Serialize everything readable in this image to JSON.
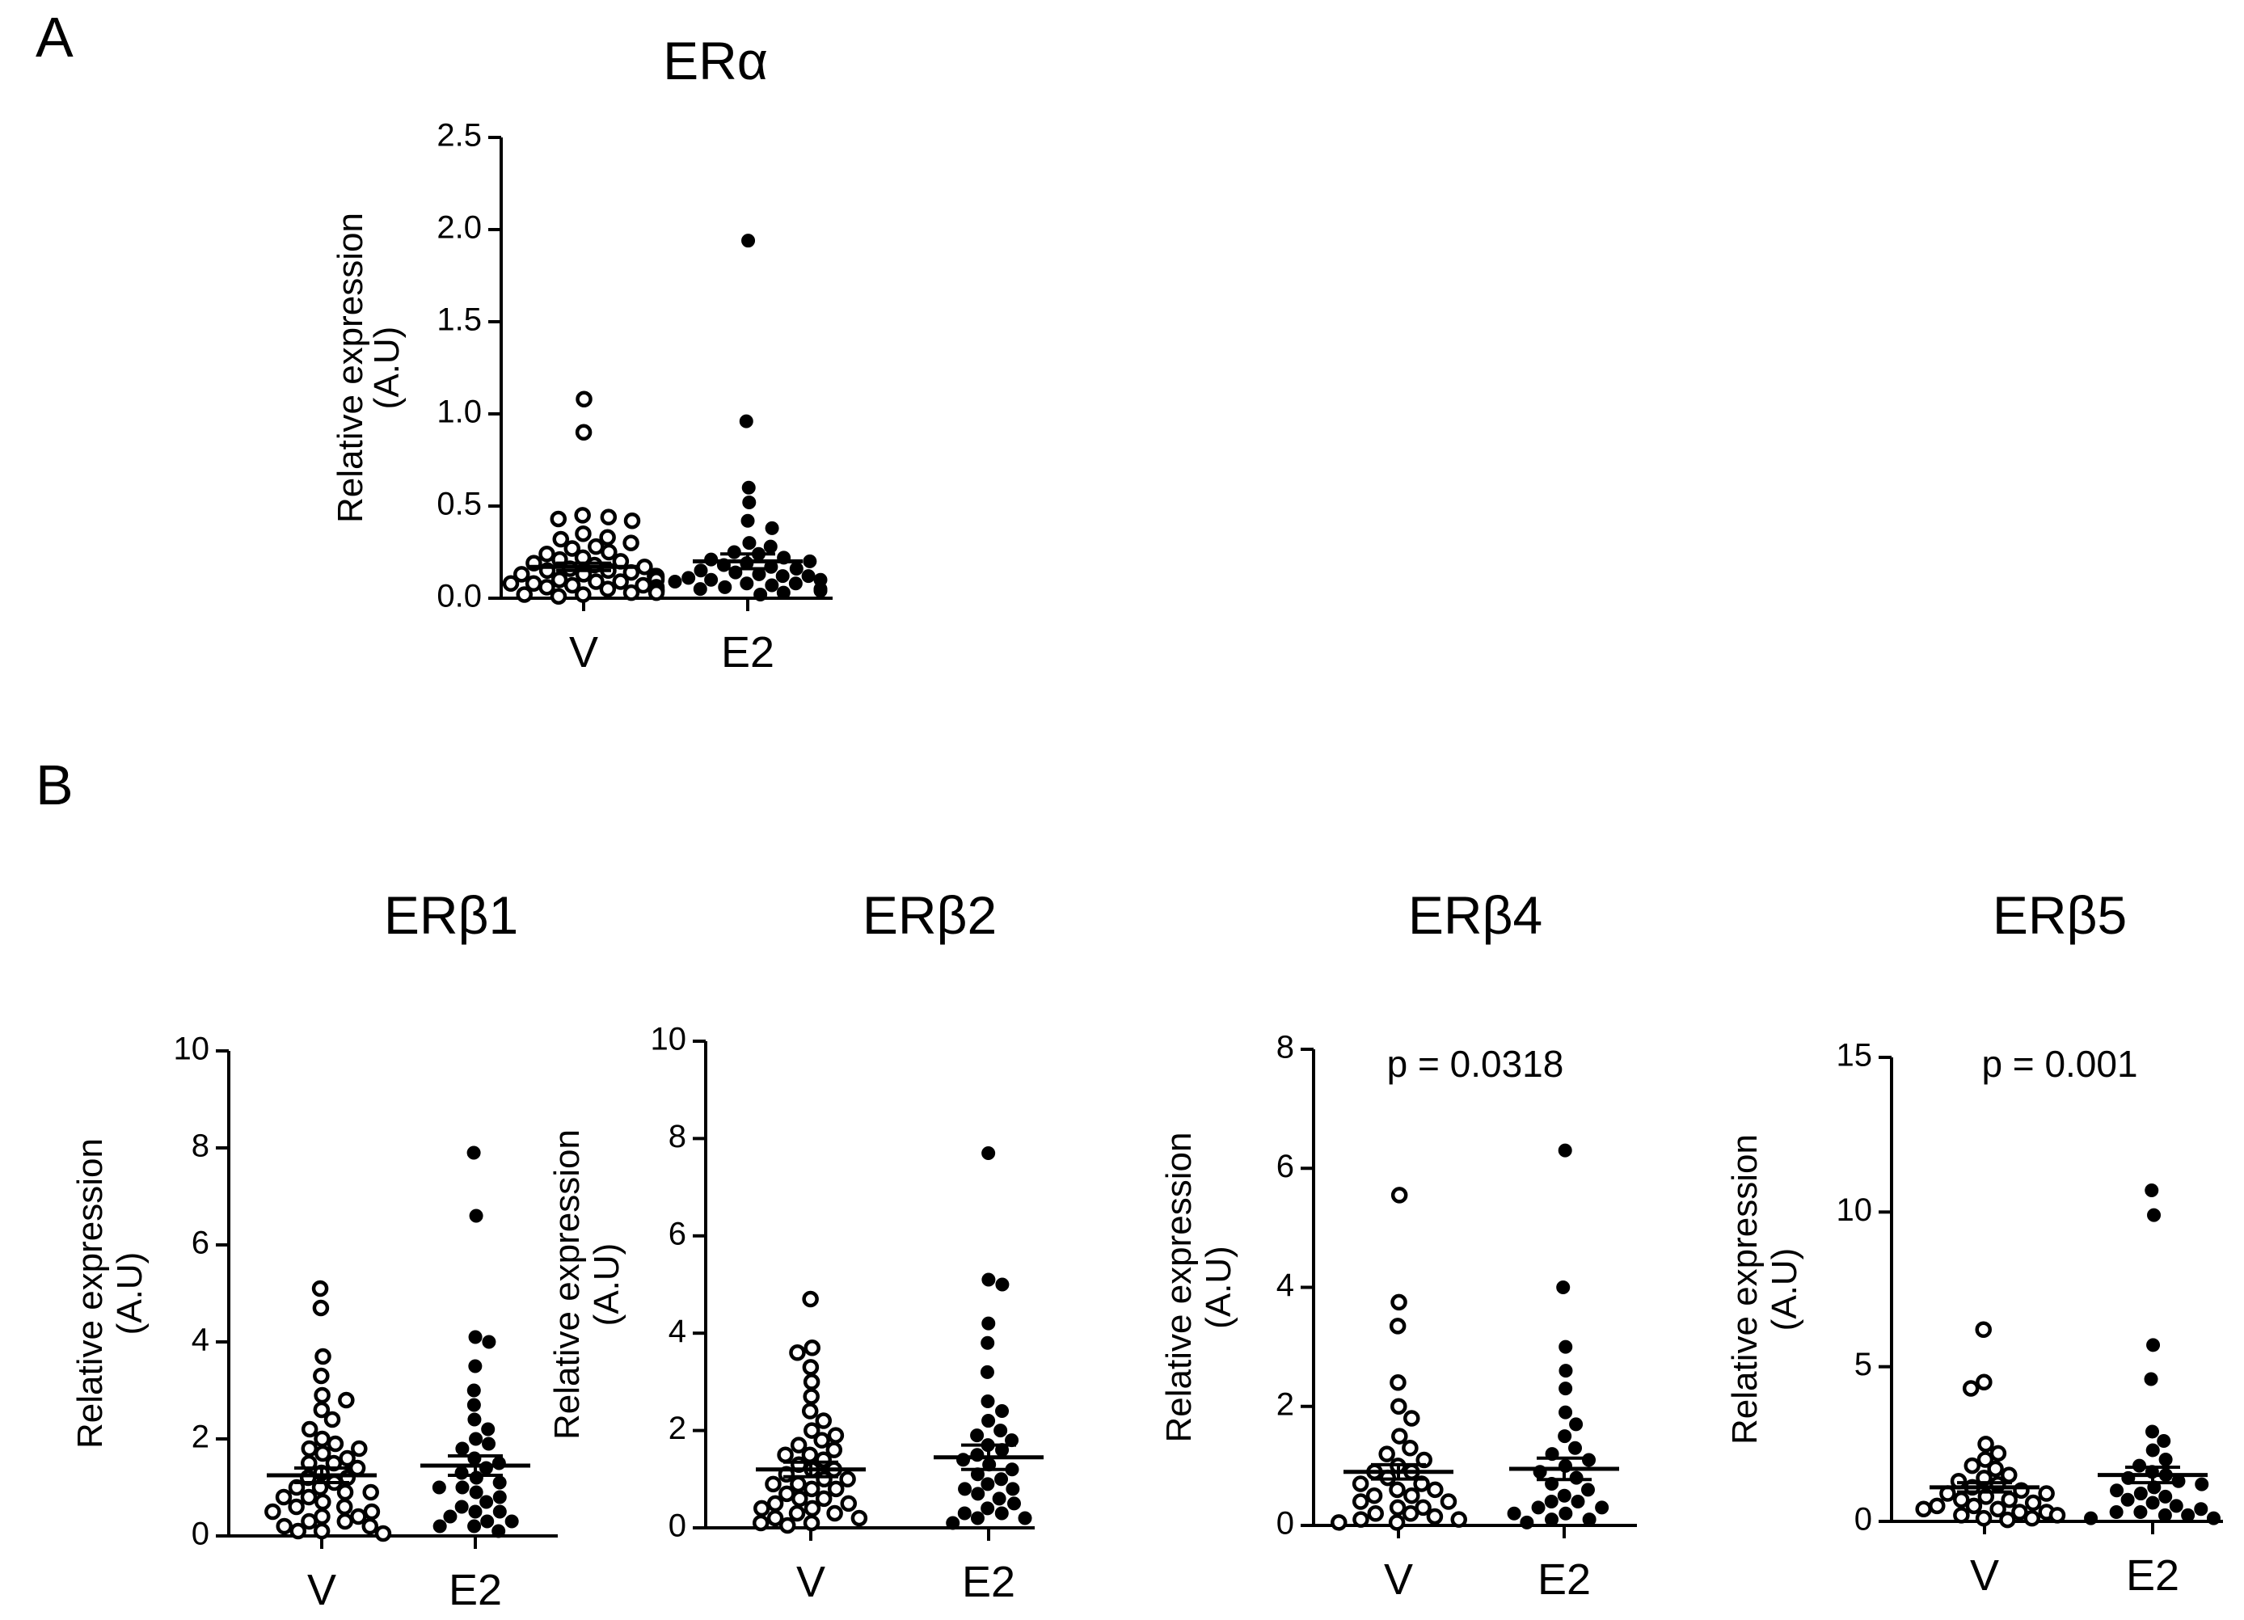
{
  "panel_labels": [
    "A",
    "B"
  ],
  "chart_data": [
    {
      "type": "scatter",
      "panel": "A",
      "title": "ERα",
      "ylabel": "Relative expression",
      "ylabel_unit": "(A.U)",
      "categories": [
        "V",
        "E2"
      ],
      "ylim": [
        0,
        2.5
      ],
      "yticks": [
        "0.0",
        "0.5",
        "1.0",
        "1.5",
        "2.0",
        "2.5"
      ],
      "ytick_values": [
        0,
        0.5,
        1.0,
        1.5,
        2.0,
        2.5
      ],
      "annotation": "",
      "series": [
        {
          "name": "V",
          "marker": "open",
          "mean": 0.17,
          "sem": 0.02,
          "values": [
            1.08,
            0.9,
            0.45,
            0.44,
            0.43,
            0.42,
            0.35,
            0.33,
            0.32,
            0.3,
            0.28,
            0.27,
            0.25,
            0.24,
            0.22,
            0.21,
            0.2,
            0.19,
            0.18,
            0.17,
            0.16,
            0.15,
            0.15,
            0.14,
            0.13,
            0.13,
            0.12,
            0.12,
            0.11,
            0.1,
            0.1,
            0.09,
            0.09,
            0.08,
            0.08,
            0.07,
            0.07,
            0.06,
            0.06,
            0.05,
            0.05,
            0.04,
            0.04,
            0.03,
            0.03,
            0.02,
            0.02,
            0.01
          ]
        },
        {
          "name": "E2",
          "marker": "filled",
          "mean": 0.2,
          "sem": 0.04,
          "values": [
            1.94,
            0.96,
            0.6,
            0.52,
            0.42,
            0.38,
            0.3,
            0.28,
            0.25,
            0.24,
            0.22,
            0.21,
            0.2,
            0.19,
            0.18,
            0.17,
            0.16,
            0.15,
            0.14,
            0.13,
            0.12,
            0.12,
            0.11,
            0.1,
            0.1,
            0.09,
            0.08,
            0.08,
            0.07,
            0.06,
            0.05,
            0.05,
            0.04,
            0.03,
            0.02
          ]
        }
      ]
    },
    {
      "type": "scatter",
      "panel": "B",
      "title": "ERβ1",
      "ylabel": "Relative expression",
      "ylabel_unit": "(A.U)",
      "categories": [
        "V",
        "E2"
      ],
      "ylim": [
        0,
        10
      ],
      "yticks": [
        "0",
        "2",
        "4",
        "6",
        "8",
        "10"
      ],
      "ytick_values": [
        0,
        2,
        4,
        6,
        8,
        10
      ],
      "annotation": "",
      "series": [
        {
          "name": "V",
          "marker": "open",
          "mean": 1.25,
          "sem": 0.15,
          "values": [
            5.1,
            4.7,
            3.7,
            3.3,
            2.9,
            2.8,
            2.6,
            2.4,
            2.2,
            2.0,
            1.9,
            1.8,
            1.8,
            1.7,
            1.6,
            1.5,
            1.5,
            1.4,
            1.3,
            1.2,
            1.2,
            1.1,
            1.0,
            1.0,
            0.9,
            0.9,
            0.8,
            0.8,
            0.7,
            0.6,
            0.6,
            0.5,
            0.5,
            0.4,
            0.4,
            0.3,
            0.3,
            0.2,
            0.2,
            0.1,
            0.1,
            0.05
          ]
        },
        {
          "name": "E2",
          "marker": "filled",
          "mean": 1.45,
          "sem": 0.2,
          "values": [
            7.9,
            6.6,
            4.1,
            4.0,
            3.5,
            3.0,
            2.7,
            2.4,
            2.2,
            2.0,
            1.9,
            1.8,
            1.6,
            1.5,
            1.4,
            1.3,
            1.2,
            1.1,
            1.0,
            1.0,
            0.9,
            0.8,
            0.7,
            0.6,
            0.5,
            0.5,
            0.4,
            0.3,
            0.3,
            0.2,
            0.2,
            0.1
          ]
        }
      ]
    },
    {
      "type": "scatter",
      "panel": "B",
      "title": "ERβ2",
      "ylabel": "Relative expression",
      "ylabel_unit": "(A.U)",
      "categories": [
        "V",
        "E2"
      ],
      "ylim": [
        0,
        10
      ],
      "yticks": [
        "0",
        "2",
        "4",
        "6",
        "8",
        "10"
      ],
      "ytick_values": [
        0,
        2,
        4,
        6,
        8,
        10
      ],
      "annotation": "",
      "series": [
        {
          "name": "V",
          "marker": "open",
          "mean": 1.2,
          "sem": 0.15,
          "values": [
            4.7,
            3.7,
            3.6,
            3.3,
            3.0,
            2.7,
            2.4,
            2.2,
            2.0,
            1.9,
            1.8,
            1.7,
            1.6,
            1.5,
            1.5,
            1.4,
            1.3,
            1.2,
            1.2,
            1.1,
            1.0,
            1.0,
            0.9,
            0.9,
            0.8,
            0.8,
            0.7,
            0.6,
            0.6,
            0.5,
            0.5,
            0.4,
            0.4,
            0.3,
            0.3,
            0.2,
            0.2,
            0.1,
            0.1,
            0.05
          ]
        },
        {
          "name": "E2",
          "marker": "filled",
          "mean": 1.45,
          "sem": 0.25,
          "values": [
            7.7,
            5.1,
            5.0,
            4.2,
            3.8,
            3.2,
            2.6,
            2.4,
            2.2,
            2.0,
            1.9,
            1.8,
            1.7,
            1.6,
            1.5,
            1.4,
            1.3,
            1.2,
            1.1,
            1.0,
            0.9,
            0.8,
            0.8,
            0.7,
            0.6,
            0.5,
            0.4,
            0.3,
            0.3,
            0.2,
            0.2,
            0.1
          ]
        }
      ]
    },
    {
      "type": "scatter",
      "panel": "B",
      "title": "ERβ4",
      "ylabel": "Relative expression",
      "ylabel_unit": "(A.U)",
      "categories": [
        "V",
        "E2"
      ],
      "ylim": [
        0,
        8
      ],
      "yticks": [
        "0",
        "2",
        "4",
        "6",
        "8"
      ],
      "ytick_values": [
        0,
        2,
        4,
        6,
        8
      ],
      "annotation": "p = 0.0318",
      "series": [
        {
          "name": "V",
          "marker": "open",
          "mean": 0.9,
          "sem": 0.12,
          "values": [
            5.55,
            3.75,
            3.35,
            2.4,
            2.0,
            1.8,
            1.5,
            1.3,
            1.2,
            1.1,
            1.0,
            0.9,
            0.9,
            0.8,
            0.7,
            0.7,
            0.6,
            0.6,
            0.5,
            0.5,
            0.4,
            0.4,
            0.3,
            0.3,
            0.2,
            0.2,
            0.15,
            0.1,
            0.1,
            0.05,
            0.05
          ]
        },
        {
          "name": "E2",
          "marker": "filled",
          "mean": 0.95,
          "sem": 0.18,
          "values": [
            6.3,
            4.0,
            3.0,
            2.6,
            2.3,
            1.9,
            1.7,
            1.5,
            1.3,
            1.2,
            1.1,
            1.0,
            0.9,
            0.8,
            0.7,
            0.6,
            0.5,
            0.4,
            0.4,
            0.3,
            0.3,
            0.2,
            0.2,
            0.1,
            0.1,
            0.05
          ]
        }
      ]
    },
    {
      "type": "scatter",
      "panel": "B",
      "title": "ERβ5",
      "ylabel": "Relative expression",
      "ylabel_unit": "(A.U)",
      "categories": [
        "V",
        "E2"
      ],
      "ylim": [
        0,
        15
      ],
      "yticks": [
        "0",
        "5",
        "10",
        "15"
      ],
      "ytick_values": [
        0,
        5,
        10,
        15
      ],
      "annotation": "p = 0.001",
      "series": [
        {
          "name": "V",
          "marker": "open",
          "mean": 1.1,
          "sem": 0.15,
          "values": [
            6.2,
            4.5,
            4.3,
            2.5,
            2.2,
            2.0,
            1.8,
            1.7,
            1.5,
            1.4,
            1.3,
            1.2,
            1.1,
            1.0,
            0.9,
            0.9,
            0.8,
            0.7,
            0.7,
            0.6,
            0.5,
            0.5,
            0.4,
            0.4,
            0.3,
            0.3,
            0.2,
            0.2,
            0.1,
            0.1,
            0.05
          ]
        },
        {
          "name": "E2",
          "marker": "filled",
          "mean": 1.5,
          "sem": 0.25,
          "values": [
            10.7,
            9.9,
            5.7,
            4.6,
            2.9,
            2.6,
            2.3,
            2.0,
            1.8,
            1.6,
            1.5,
            1.4,
            1.3,
            1.2,
            1.1,
            1.0,
            0.9,
            0.8,
            0.7,
            0.6,
            0.5,
            0.4,
            0.3,
            0.3,
            0.2,
            0.2,
            0.1,
            0.1
          ]
        }
      ]
    }
  ]
}
